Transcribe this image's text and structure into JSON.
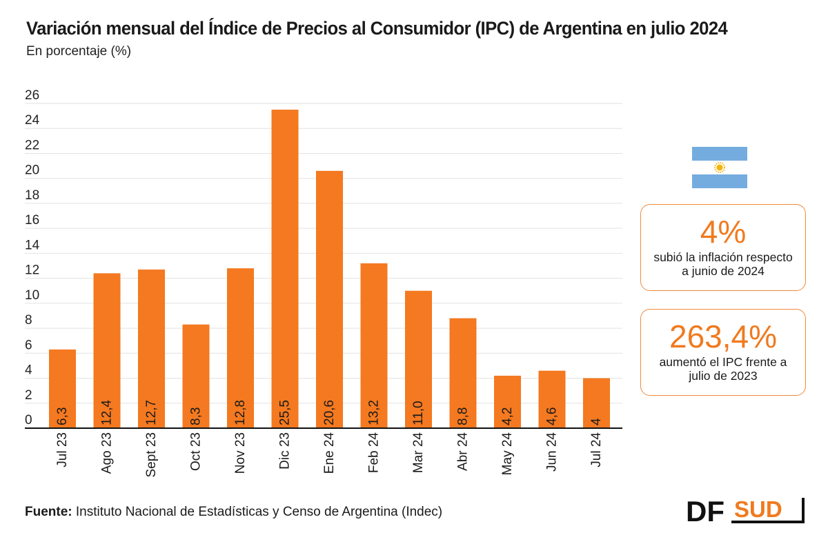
{
  "title": "Variación mensual del Índice de Precios al Consumidor (IPC) de Argentina en julio 2024",
  "subtitle": "En porcentaje (%)",
  "source_label": "Fuente:",
  "source_text": " Instituto Nacional de Estadísticas y Censo de Argentina (Indec)",
  "colors": {
    "bar": "#f47920",
    "accent": "#f07a1f",
    "flag_blue": "#74acdf",
    "sun": "#f6b40e"
  },
  "cards": [
    {
      "value": "4%",
      "text_line1": "subió la inflación respecto",
      "text_line2": "a junio de 2024"
    },
    {
      "value": "263,4%",
      "text_line1": "aumentó el IPC frente a",
      "text_line2": "julio de 2023"
    }
  ],
  "logo": {
    "left": "DF",
    "right": "SUD"
  },
  "chart_data": {
    "type": "bar",
    "categories": [
      "Jul 23",
      "Ago 23",
      "Sept 23",
      "Oct 23",
      "Nov 23",
      "Dic 23",
      "Ene 24",
      "Feb 24",
      "Mar 24",
      "Abr 24",
      "May 24",
      "Jun 24",
      "Jul 24"
    ],
    "values": [
      6.3,
      12.4,
      12.7,
      8.3,
      12.8,
      25.5,
      20.6,
      13.2,
      11.0,
      8.8,
      4.2,
      4.6,
      4
    ],
    "value_labels": [
      "6,3",
      "12,4",
      "12,7",
      "8,3",
      "12,8",
      "25,5",
      "20,6",
      "13,2",
      "11,0",
      "8,8",
      "4,2",
      "4,6",
      "4"
    ],
    "yticks": [
      "0",
      "2",
      "4",
      "6",
      "8",
      "10",
      "12",
      "14",
      "16",
      "18",
      "20",
      "22",
      "24",
      "26"
    ],
    "ylim": [
      0,
      26
    ],
    "grid": true
  }
}
